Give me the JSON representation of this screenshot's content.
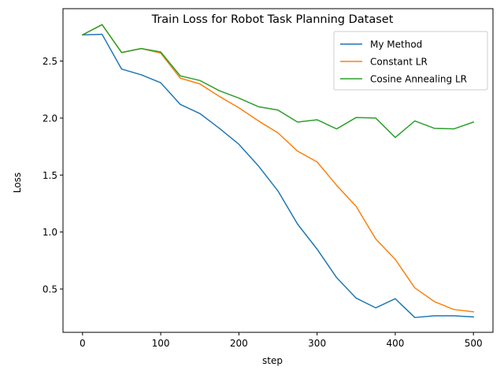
{
  "chart_data": {
    "type": "line",
    "title": "Train Loss for Robot Task Planning Dataset",
    "xlabel": "step",
    "ylabel": "Loss",
    "xlim": [
      -25,
      525
    ],
    "ylim": [
      0.12,
      2.96
    ],
    "xticks": [
      0,
      100,
      200,
      300,
      400,
      500
    ],
    "xtick_labels": [
      "0",
      "100",
      "200",
      "300",
      "400",
      "500"
    ],
    "yticks": [
      0.5,
      1.0,
      1.5,
      2.0,
      2.5
    ],
    "ytick_labels": [
      "0.5",
      "1.0",
      "1.5",
      "2.0",
      "2.5"
    ],
    "grid": false,
    "legend_position": "top-right",
    "x": [
      0,
      25,
      50,
      75,
      100,
      125,
      150,
      175,
      200,
      225,
      250,
      275,
      300,
      325,
      350,
      375,
      400,
      425,
      450,
      475,
      500
    ],
    "series": [
      {
        "name": "My Method",
        "color": "#1f77b4",
        "values": [
          2.73,
          2.735,
          2.43,
          2.38,
          2.31,
          2.12,
          2.04,
          1.91,
          1.77,
          1.58,
          1.36,
          1.07,
          0.85,
          0.6,
          0.42,
          0.335,
          0.415,
          0.25,
          0.265,
          0.265,
          0.255
        ]
      },
      {
        "name": "Constant LR",
        "color": "#ff7f0e",
        "values": [
          2.73,
          2.82,
          2.575,
          2.61,
          2.57,
          2.35,
          2.3,
          2.19,
          2.09,
          1.975,
          1.87,
          1.71,
          1.615,
          1.41,
          1.225,
          0.94,
          0.76,
          0.51,
          0.39,
          0.32,
          0.3
        ]
      },
      {
        "name": "Cosine Annealing LR",
        "color": "#2ca02c",
        "values": [
          2.73,
          2.82,
          2.575,
          2.61,
          2.58,
          2.37,
          2.33,
          2.24,
          2.175,
          2.1,
          2.07,
          1.965,
          1.985,
          1.905,
          2.005,
          2.0,
          1.83,
          1.975,
          1.91,
          1.905,
          1.965
        ]
      }
    ]
  }
}
